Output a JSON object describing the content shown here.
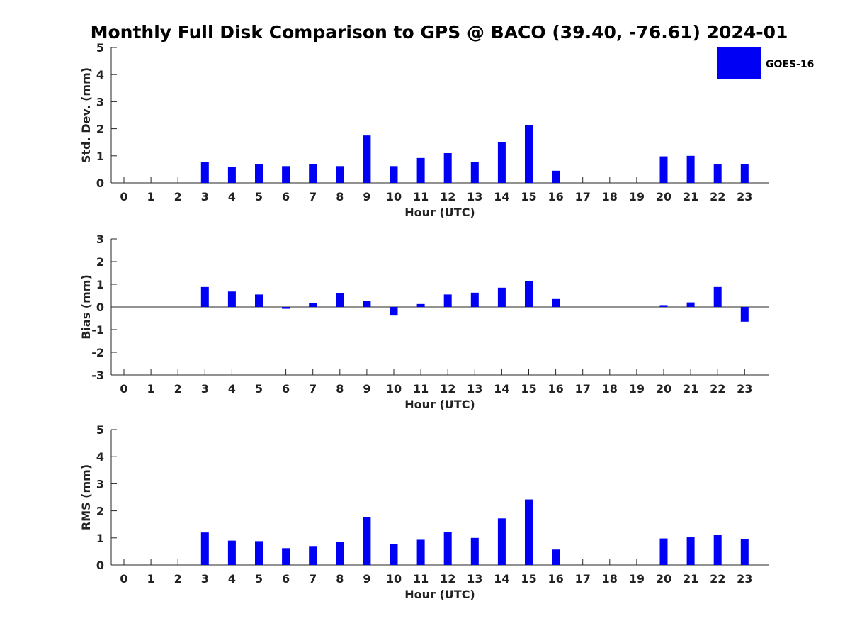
{
  "colors": {
    "bar": "#0000f5",
    "axis": "#262626"
  },
  "chart_data": {
    "title": "Monthly Full Disk Comparison to GPS @ BACO (39.40, -76.61) 2024-01",
    "legend": {
      "label": "GOES-16",
      "position": "top-right"
    },
    "type": "bar",
    "categories": [
      "0",
      "1",
      "2",
      "3",
      "4",
      "5",
      "6",
      "7",
      "8",
      "9",
      "10",
      "11",
      "12",
      "13",
      "14",
      "15",
      "16",
      "17",
      "18",
      "19",
      "20",
      "21",
      "22",
      "23"
    ],
    "panels": [
      {
        "ylabel": "Std. Dev. (mm)",
        "xlabel": "Hour (UTC)",
        "ylim": [
          0,
          5
        ],
        "yticks": [
          "0",
          "1",
          "2",
          "3",
          "4",
          "5"
        ],
        "values": [
          null,
          null,
          null,
          0.78,
          0.6,
          0.68,
          0.62,
          0.68,
          0.62,
          1.75,
          0.62,
          0.92,
          1.1,
          0.78,
          1.5,
          2.12,
          0.45,
          null,
          null,
          null,
          0.98,
          1.0,
          0.68,
          0.68
        ]
      },
      {
        "ylabel": "Bias (mm)",
        "xlabel": "Hour (UTC)",
        "ylim": [
          -3,
          3
        ],
        "yticks": [
          "-3",
          "-2",
          "-1",
          "0",
          "1",
          "2",
          "3"
        ],
        "values": [
          null,
          null,
          null,
          0.88,
          0.68,
          0.55,
          -0.08,
          0.18,
          0.6,
          0.27,
          -0.38,
          0.13,
          0.55,
          0.63,
          0.85,
          1.13,
          0.35,
          null,
          null,
          null,
          0.08,
          0.2,
          0.88,
          -0.65
        ]
      },
      {
        "ylabel": "RMS (mm)",
        "xlabel": "Hour (UTC)",
        "ylim": [
          0,
          5
        ],
        "yticks": [
          "0",
          "1",
          "2",
          "3",
          "4",
          "5"
        ],
        "values": [
          null,
          null,
          null,
          1.2,
          0.9,
          0.88,
          0.62,
          0.7,
          0.85,
          1.77,
          0.77,
          0.93,
          1.23,
          1.0,
          1.72,
          2.42,
          0.57,
          null,
          null,
          null,
          0.98,
          1.02,
          1.1,
          0.95
        ]
      }
    ]
  }
}
